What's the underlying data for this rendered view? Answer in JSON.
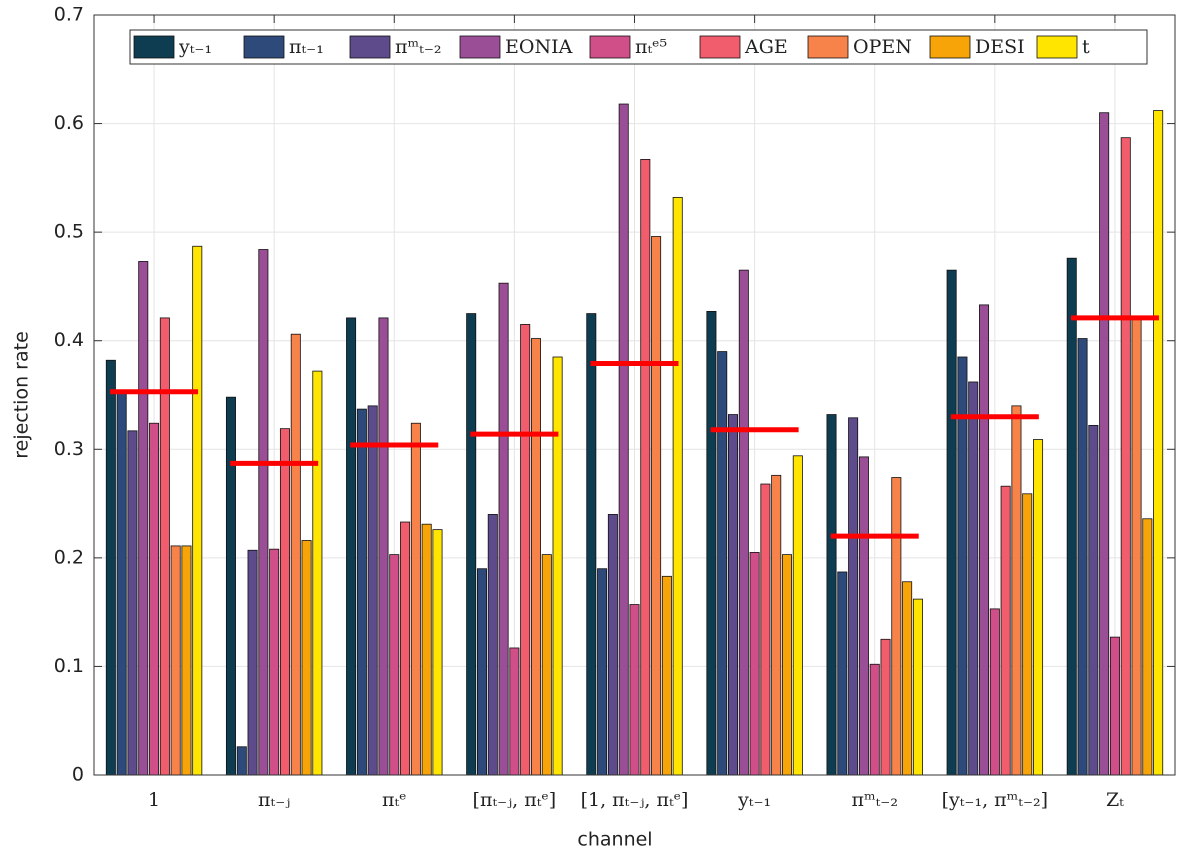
{
  "chart_data": {
    "type": "bar",
    "xlabel": "channel",
    "ylabel": "rejection rate",
    "categories": [
      "1",
      "πₜ₋ⱼ",
      "πₜᵉ",
      "[πₜ₋ⱼ, πₜᵉ]",
      "[1, πₜ₋ⱼ, πₜᵉ]",
      "yₜ₋₁",
      "πᵐₜ₋₂",
      "[yₜ₋₁, πᵐₜ₋₂]",
      "Zₜ"
    ],
    "series": [
      {
        "name": "yₜ₋₁",
        "color": "#0e3d52",
        "values": [
          0.382,
          0.348,
          0.421,
          0.425,
          0.425,
          0.427,
          0.332,
          0.465,
          0.476
        ]
      },
      {
        "name": "πₜ₋₁",
        "color": "#2d4a7b",
        "values": [
          0.352,
          0.026,
          0.337,
          0.19,
          0.19,
          0.39,
          0.187,
          0.385,
          0.402
        ]
      },
      {
        "name": "πᵐₜ₋₂",
        "color": "#5d4b8c",
        "values": [
          0.317,
          0.207,
          0.34,
          0.24,
          0.24,
          0.332,
          0.329,
          0.362,
          0.322
        ]
      },
      {
        "name": "EONIA",
        "color": "#9a4e95",
        "values": [
          0.473,
          0.484,
          0.421,
          0.453,
          0.618,
          0.465,
          0.293,
          0.433,
          0.61
        ]
      },
      {
        "name": "πₜᵉ⁵",
        "color": "#d14f88",
        "values": [
          0.324,
          0.208,
          0.203,
          0.117,
          0.157,
          0.205,
          0.102,
          0.153,
          0.127
        ]
      },
      {
        "name": "AGE",
        "color": "#f25d6e",
        "values": [
          0.421,
          0.319,
          0.233,
          0.415,
          0.567,
          0.268,
          0.125,
          0.266,
          0.587
        ]
      },
      {
        "name": "OPEN",
        "color": "#f7834a",
        "values": [
          0.211,
          0.406,
          0.324,
          0.402,
          0.496,
          0.276,
          0.274,
          0.34,
          0.421
        ]
      },
      {
        "name": "DESI",
        "color": "#f6a408",
        "values": [
          0.211,
          0.216,
          0.231,
          0.203,
          0.183,
          0.203,
          0.178,
          0.259,
          0.236
        ]
      },
      {
        "name": "t",
        "color": "#ffe500",
        "values": [
          0.487,
          0.372,
          0.226,
          0.385,
          0.532,
          0.294,
          0.162,
          0.309,
          0.612
        ]
      }
    ],
    "mean_lines": {
      "color": "#ff0000",
      "values": [
        0.353,
        0.287,
        0.304,
        0.314,
        0.379,
        0.318,
        0.22,
        0.33,
        0.421
      ]
    },
    "ylim": [
      0,
      0.7
    ],
    "yticks": [
      0,
      0.1,
      0.2,
      0.3,
      0.4,
      0.5,
      0.6,
      0.7
    ],
    "grid": true,
    "legend": "top"
  }
}
